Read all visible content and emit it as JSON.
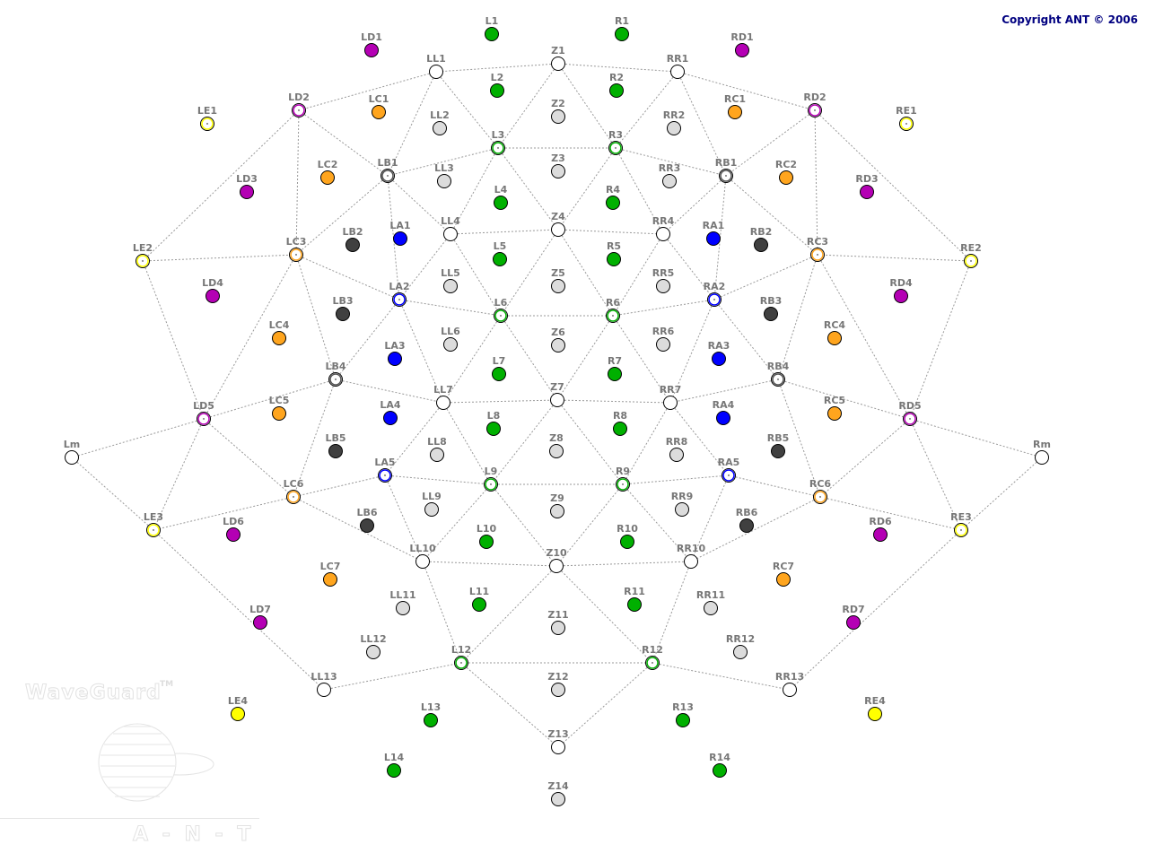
{
  "copyright": "Copyright ANT © 2006",
  "watermark": {
    "product": "WaveGuard",
    "trademark": "TM",
    "brand": "A - N - T"
  },
  "colors": {
    "green": "#00b000",
    "orange": "#ffa51e",
    "magenta": "#b400b4",
    "blue": "#0000ff",
    "dark": "#404040",
    "yellow": "#ffff00",
    "gray": "#dcdcdc",
    "white": "#ffffff",
    "ringdark": "#555555"
  },
  "electrodes": [
    {
      "label": "L1",
      "color": "green",
      "style": "filled"
    },
    {
      "label": "R1",
      "color": "green",
      "style": "filled"
    },
    {
      "label": "LD1",
      "color": "magenta",
      "style": "filled"
    },
    {
      "label": "RD1",
      "color": "magenta",
      "style": "filled"
    },
    {
      "label": "LL1",
      "color": "white",
      "style": "open"
    },
    {
      "label": "Z1",
      "color": "white",
      "style": "open"
    },
    {
      "label": "RR1",
      "color": "white",
      "style": "open"
    },
    {
      "label": "L2",
      "color": "green",
      "style": "filled"
    },
    {
      "label": "R2",
      "color": "green",
      "style": "filled"
    },
    {
      "label": "LD2",
      "color": "magenta",
      "style": "ring"
    },
    {
      "label": "LC1",
      "color": "orange",
      "style": "filled"
    },
    {
      "label": "RC1",
      "color": "orange",
      "style": "filled"
    },
    {
      "label": "RD2",
      "color": "magenta",
      "style": "ring"
    },
    {
      "label": "LE1",
      "color": "yellow",
      "style": "ring"
    },
    {
      "label": "RE1",
      "color": "yellow",
      "style": "ring"
    },
    {
      "label": "LL2",
      "color": "gray",
      "style": "filled"
    },
    {
      "label": "Z2",
      "color": "gray",
      "style": "filled"
    },
    {
      "label": "RR2",
      "color": "gray",
      "style": "filled"
    },
    {
      "label": "L3",
      "color": "green",
      "style": "ring"
    },
    {
      "label": "R3",
      "color": "green",
      "style": "ring"
    },
    {
      "label": "LD3",
      "color": "magenta",
      "style": "filled"
    },
    {
      "label": "LC2",
      "color": "orange",
      "style": "filled"
    },
    {
      "label": "LB1",
      "color": "ringdark",
      "style": "ring"
    },
    {
      "label": "LL3",
      "color": "gray",
      "style": "filled"
    },
    {
      "label": "Z3",
      "color": "gray",
      "style": "filled"
    },
    {
      "label": "RR3",
      "color": "gray",
      "style": "filled"
    },
    {
      "label": "RB1",
      "color": "ringdark",
      "style": "ring"
    },
    {
      "label": "RC2",
      "color": "orange",
      "style": "filled"
    },
    {
      "label": "RD3",
      "color": "magenta",
      "style": "filled"
    },
    {
      "label": "L4",
      "color": "green",
      "style": "filled"
    },
    {
      "label": "R4",
      "color": "green",
      "style": "filled"
    },
    {
      "label": "LB2",
      "color": "dark",
      "style": "filled"
    },
    {
      "label": "LA1",
      "color": "blue",
      "style": "filled"
    },
    {
      "label": "LL4",
      "color": "white",
      "style": "open"
    },
    {
      "label": "Z4",
      "color": "white",
      "style": "open"
    },
    {
      "label": "RR4",
      "color": "white",
      "style": "open"
    },
    {
      "label": "RA1",
      "color": "blue",
      "style": "filled"
    },
    {
      "label": "RB2",
      "color": "dark",
      "style": "filled"
    },
    {
      "label": "LE2",
      "color": "yellow",
      "style": "ring"
    },
    {
      "label": "LC3",
      "color": "orange",
      "style": "ring"
    },
    {
      "label": "RC3",
      "color": "orange",
      "style": "ring"
    },
    {
      "label": "RE2",
      "color": "yellow",
      "style": "ring"
    },
    {
      "label": "L5",
      "color": "green",
      "style": "filled"
    },
    {
      "label": "R5",
      "color": "green",
      "style": "filled"
    },
    {
      "label": "LL5",
      "color": "gray",
      "style": "filled"
    },
    {
      "label": "Z5",
      "color": "gray",
      "style": "filled"
    },
    {
      "label": "RR5",
      "color": "gray",
      "style": "filled"
    },
    {
      "label": "LD4",
      "color": "magenta",
      "style": "filled"
    },
    {
      "label": "RD4",
      "color": "magenta",
      "style": "filled"
    },
    {
      "label": "LA2",
      "color": "blue",
      "style": "ring"
    },
    {
      "label": "RA2",
      "color": "blue",
      "style": "ring"
    },
    {
      "label": "LB3",
      "color": "dark",
      "style": "filled"
    },
    {
      "label": "RB3",
      "color": "dark",
      "style": "filled"
    },
    {
      "label": "L6",
      "color": "green",
      "style": "ring"
    },
    {
      "label": "R6",
      "color": "green",
      "style": "ring"
    },
    {
      "label": "LC4",
      "color": "orange",
      "style": "filled"
    },
    {
      "label": "RC4",
      "color": "orange",
      "style": "filled"
    },
    {
      "label": "LL6",
      "color": "gray",
      "style": "filled"
    },
    {
      "label": "Z6",
      "color": "gray",
      "style": "filled"
    },
    {
      "label": "RR6",
      "color": "gray",
      "style": "filled"
    },
    {
      "label": "LA3",
      "color": "blue",
      "style": "filled"
    },
    {
      "label": "RA3",
      "color": "blue",
      "style": "filled"
    },
    {
      "label": "L7",
      "color": "green",
      "style": "filled"
    },
    {
      "label": "R7",
      "color": "green",
      "style": "filled"
    },
    {
      "label": "LB4",
      "color": "ringdark",
      "style": "ring"
    },
    {
      "label": "RB4",
      "color": "ringdark",
      "style": "ring"
    },
    {
      "label": "LL7",
      "color": "white",
      "style": "open"
    },
    {
      "label": "Z7",
      "color": "white",
      "style": "open"
    },
    {
      "label": "RR7",
      "color": "white",
      "style": "open"
    },
    {
      "label": "LC5",
      "color": "orange",
      "style": "filled"
    },
    {
      "label": "RC5",
      "color": "orange",
      "style": "filled"
    },
    {
      "label": "LD5",
      "color": "magenta",
      "style": "ring"
    },
    {
      "label": "RD5",
      "color": "magenta",
      "style": "ring"
    },
    {
      "label": "LA4",
      "color": "blue",
      "style": "filled"
    },
    {
      "label": "RA4",
      "color": "blue",
      "style": "filled"
    },
    {
      "label": "L8",
      "color": "green",
      "style": "filled"
    },
    {
      "label": "R8",
      "color": "green",
      "style": "filled"
    },
    {
      "label": "LB5",
      "color": "dark",
      "style": "filled"
    },
    {
      "label": "RB5",
      "color": "dark",
      "style": "filled"
    },
    {
      "label": "LL8",
      "color": "gray",
      "style": "filled"
    },
    {
      "label": "Z8",
      "color": "gray",
      "style": "filled"
    },
    {
      "label": "RR8",
      "color": "gray",
      "style": "filled"
    },
    {
      "label": "Lm",
      "color": "white",
      "style": "open"
    },
    {
      "label": "Rm",
      "color": "white",
      "style": "open"
    },
    {
      "label": "LA5",
      "color": "blue",
      "style": "ring"
    },
    {
      "label": "RA5",
      "color": "blue",
      "style": "ring"
    },
    {
      "label": "L9",
      "color": "green",
      "style": "ring"
    },
    {
      "label": "R9",
      "color": "green",
      "style": "ring"
    },
    {
      "label": "LC6",
      "color": "orange",
      "style": "ring"
    },
    {
      "label": "RC6",
      "color": "orange",
      "style": "ring"
    },
    {
      "label": "LL9",
      "color": "gray",
      "style": "filled"
    },
    {
      "label": "Z9",
      "color": "gray",
      "style": "filled"
    },
    {
      "label": "RR9",
      "color": "gray",
      "style": "filled"
    },
    {
      "label": "LB6",
      "color": "dark",
      "style": "filled"
    },
    {
      "label": "RB6",
      "color": "dark",
      "style": "filled"
    },
    {
      "label": "LE3",
      "color": "yellow",
      "style": "ring"
    },
    {
      "label": "RE3",
      "color": "yellow",
      "style": "ring"
    },
    {
      "label": "LD6",
      "color": "magenta",
      "style": "filled"
    },
    {
      "label": "RD6",
      "color": "magenta",
      "style": "filled"
    },
    {
      "label": "L10",
      "color": "green",
      "style": "filled"
    },
    {
      "label": "R10",
      "color": "green",
      "style": "filled"
    },
    {
      "label": "LL10",
      "color": "white",
      "style": "open"
    },
    {
      "label": "Z10",
      "color": "white",
      "style": "open"
    },
    {
      "label": "RR10",
      "color": "white",
      "style": "open"
    },
    {
      "label": "LC7",
      "color": "orange",
      "style": "filled"
    },
    {
      "label": "RC7",
      "color": "orange",
      "style": "filled"
    },
    {
      "label": "LL11",
      "color": "gray",
      "style": "filled"
    },
    {
      "label": "RR11",
      "color": "gray",
      "style": "filled"
    },
    {
      "label": "L11",
      "color": "green",
      "style": "filled"
    },
    {
      "label": "R11",
      "color": "green",
      "style": "filled"
    },
    {
      "label": "LD7",
      "color": "magenta",
      "style": "filled"
    },
    {
      "label": "RD7",
      "color": "magenta",
      "style": "filled"
    },
    {
      "label": "Z11",
      "color": "gray",
      "style": "filled"
    },
    {
      "label": "LL12",
      "color": "gray",
      "style": "filled"
    },
    {
      "label": "RR12",
      "color": "gray",
      "style": "filled"
    },
    {
      "label": "L12",
      "color": "green",
      "style": "ring"
    },
    {
      "label": "R12",
      "color": "green",
      "style": "ring"
    },
    {
      "label": "LL13",
      "color": "white",
      "style": "open"
    },
    {
      "label": "RR13",
      "color": "white",
      "style": "open"
    },
    {
      "label": "Z12",
      "color": "gray",
      "style": "filled"
    },
    {
      "label": "LE4",
      "color": "yellow",
      "style": "filled"
    },
    {
      "label": "RE4",
      "color": "yellow",
      "style": "filled"
    },
    {
      "label": "L13",
      "color": "green",
      "style": "filled"
    },
    {
      "label": "R13",
      "color": "green",
      "style": "filled"
    },
    {
      "label": "Z13",
      "color": "white",
      "style": "open"
    },
    {
      "label": "L14",
      "color": "green",
      "style": "filled"
    },
    {
      "label": "R14",
      "color": "green",
      "style": "filled"
    },
    {
      "label": "Z14",
      "color": "gray",
      "style": "filled"
    }
  ],
  "connections": [
    [
      "Z1",
      "LL1"
    ],
    [
      "Z1",
      "RR1"
    ],
    [
      "LL1",
      "LD2"
    ],
    [
      "RR1",
      "RD2"
    ],
    [
      "LD2",
      "LE2"
    ],
    [
      "RD2",
      "RE2"
    ],
    [
      "LD2",
      "LB1"
    ],
    [
      "RD2",
      "RB1"
    ],
    [
      "LD2",
      "LC3"
    ],
    [
      "RD2",
      "RC3"
    ],
    [
      "LL1",
      "LB1"
    ],
    [
      "RR1",
      "RB1"
    ],
    [
      "LL1",
      "L3"
    ],
    [
      "RR1",
      "R3"
    ],
    [
      "Z1",
      "L3"
    ],
    [
      "Z1",
      "R3"
    ],
    [
      "L3",
      "R3"
    ],
    [
      "L3",
      "LB1"
    ],
    [
      "R3",
      "RB1"
    ],
    [
      "L3",
      "LL4"
    ],
    [
      "R3",
      "RR4"
    ],
    [
      "L3",
      "Z4"
    ],
    [
      "R3",
      "Z4"
    ],
    [
      "LB1",
      "LC3"
    ],
    [
      "RB1",
      "RC3"
    ],
    [
      "LB1",
      "LL4"
    ],
    [
      "RB1",
      "RR4"
    ],
    [
      "LB1",
      "LA2"
    ],
    [
      "RB1",
      "RA2"
    ],
    [
      "LL4",
      "Z4"
    ],
    [
      "Z4",
      "RR4"
    ],
    [
      "LL4",
      "LA2"
    ],
    [
      "RR4",
      "RA2"
    ],
    [
      "LL4",
      "L6"
    ],
    [
      "RR4",
      "R6"
    ],
    [
      "Z4",
      "L6"
    ],
    [
      "Z4",
      "R6"
    ],
    [
      "LE2",
      "LC3"
    ],
    [
      "RE2",
      "RC3"
    ],
    [
      "LC3",
      "LA2"
    ],
    [
      "RC3",
      "RA2"
    ],
    [
      "LC3",
      "LB4"
    ],
    [
      "RC3",
      "RB4"
    ],
    [
      "LC3",
      "LD5"
    ],
    [
      "RC3",
      "RD5"
    ],
    [
      "LA2",
      "L6"
    ],
    [
      "L6",
      "R6"
    ],
    [
      "R6",
      "RA2"
    ],
    [
      "LA2",
      "LB4"
    ],
    [
      "RA2",
      "RB4"
    ],
    [
      "LA2",
      "LL7"
    ],
    [
      "RA2",
      "RR7"
    ],
    [
      "L6",
      "LL7"
    ],
    [
      "R6",
      "RR7"
    ],
    [
      "L6",
      "Z7"
    ],
    [
      "R6",
      "Z7"
    ],
    [
      "LE2",
      "LD5"
    ],
    [
      "RE2",
      "RD5"
    ],
    [
      "LB4",
      "LD5"
    ],
    [
      "RB4",
      "RD5"
    ],
    [
      "LB4",
      "LL7"
    ],
    [
      "RB4",
      "RR7"
    ],
    [
      "LB4",
      "LC6"
    ],
    [
      "RB4",
      "RC6"
    ],
    [
      "LL7",
      "Z7"
    ],
    [
      "Z7",
      "RR7"
    ],
    [
      "LL7",
      "LA5"
    ],
    [
      "RR7",
      "RA5"
    ],
    [
      "LL7",
      "L9"
    ],
    [
      "RR7",
      "R9"
    ],
    [
      "Z7",
      "L9"
    ],
    [
      "Z7",
      "R9"
    ],
    [
      "LD5",
      "Lm"
    ],
    [
      "RD5",
      "Rm"
    ],
    [
      "LD5",
      "LC6"
    ],
    [
      "RD5",
      "RC6"
    ],
    [
      "LD5",
      "LE3"
    ],
    [
      "RD5",
      "RE3"
    ],
    [
      "LA5",
      "LC6"
    ],
    [
      "RA5",
      "RC6"
    ],
    [
      "LA5",
      "L9"
    ],
    [
      "L9",
      "R9"
    ],
    [
      "R9",
      "RA5"
    ],
    [
      "LA5",
      "LL10"
    ],
    [
      "RA5",
      "RR10"
    ],
    [
      "L9",
      "LL10"
    ],
    [
      "R9",
      "RR10"
    ],
    [
      "L9",
      "Z10"
    ],
    [
      "R9",
      "Z10"
    ],
    [
      "Lm",
      "LE3"
    ],
    [
      "Rm",
      "RE3"
    ],
    [
      "LC6",
      "LE3"
    ],
    [
      "RC6",
      "RE3"
    ],
    [
      "LC6",
      "LL10"
    ],
    [
      "RC6",
      "RR10"
    ],
    [
      "LL10",
      "Z10"
    ],
    [
      "Z10",
      "RR10"
    ],
    [
      "LL10",
      "L12"
    ],
    [
      "RR10",
      "R12"
    ],
    [
      "Z10",
      "L12"
    ],
    [
      "Z10",
      "R12"
    ],
    [
      "LE3",
      "LL13"
    ],
    [
      "RE3",
      "RR13"
    ],
    [
      "LL13",
      "L12"
    ],
    [
      "L12",
      "R12"
    ],
    [
      "R12",
      "RR13"
    ],
    [
      "L12",
      "Z13"
    ],
    [
      "R12",
      "Z13"
    ]
  ]
}
